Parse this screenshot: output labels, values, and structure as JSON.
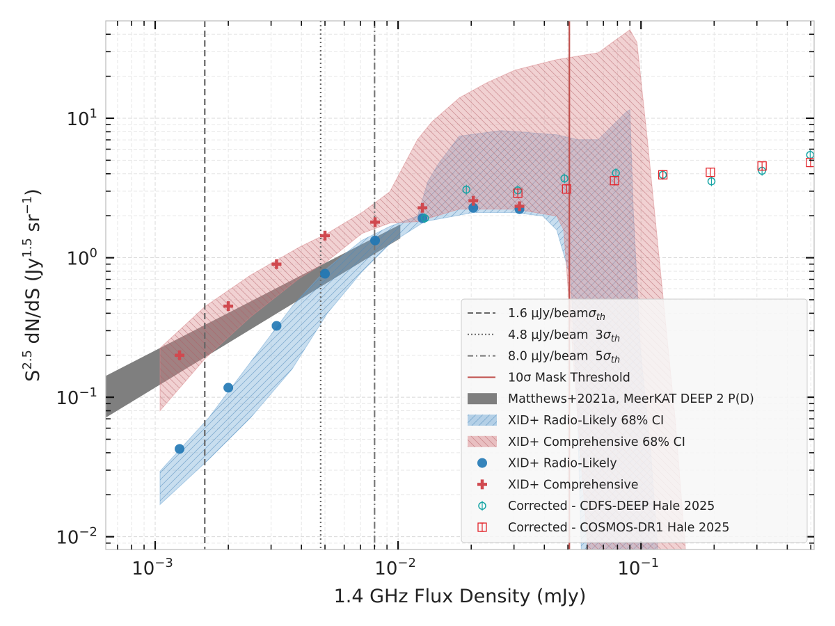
{
  "chart_data": {
    "type": "scatter",
    "xscale": "log",
    "yscale": "log",
    "xlim": [
      0.000626,
      0.516
    ],
    "ylim": [
      0.0081,
      49.9
    ],
    "xlabel": "1.4 GHz Flux Density (mJy)",
    "ylabel": {
      "s": "S",
      "s_exp": "2.5",
      "mid": " dN/dS (Jy",
      "jy_exp": "1.5",
      "sr": " sr",
      "sr_exp": "−1",
      "end": ")"
    },
    "grid": true,
    "legend_position": "lower-right",
    "x_ticks": [
      {
        "value": 0.001,
        "base": "10",
        "exp": "−3"
      },
      {
        "value": 0.01,
        "base": "10",
        "exp": "−2"
      },
      {
        "value": 0.1,
        "base": "10",
        "exp": "−1"
      }
    ],
    "y_ticks": [
      {
        "value": 0.01,
        "base": "10",
        "exp": "−2"
      },
      {
        "value": 0.1,
        "base": "10",
        "exp": "−1"
      },
      {
        "value": 1,
        "base": "10",
        "exp": "0"
      },
      {
        "value": 10,
        "base": "10",
        "exp": "1"
      }
    ],
    "vlines": [
      {
        "x": 0.0016,
        "style": "dashed",
        "color": "#666666",
        "label": "1.6 µJy/beam",
        "math_pre": "",
        "math": "σ",
        "math_sub": "th"
      },
      {
        "x": 0.0048,
        "style": "dotted",
        "color": "#666666",
        "label": "4.8 µJy/beam",
        "math_pre": "3",
        "math": "σ",
        "math_sub": "th"
      },
      {
        "x": 0.008,
        "style": "dashdot",
        "color": "#777777",
        "label": "8.0 µJy/beam",
        "math_pre": "5",
        "math": "σ",
        "math_sub": "th"
      },
      {
        "x": 0.0507,
        "style": "solid",
        "color": "#c0504d",
        "label": "10σ Mask Threshold",
        "math_pre": "",
        "math": "",
        "math_sub": ""
      }
    ],
    "bands": [
      {
        "name": "Matthews+2021a, MeerKAT DEEP 2 P(D)",
        "color": "#7f7f7f",
        "opacity": 1,
        "hatch": "none",
        "upper_log10": [
          [
            -3.203,
            -0.847
          ],
          [
            -1.991,
            0.239
          ]
        ],
        "lower_log10": [
          [
            -3.203,
            -1.146
          ],
          [
            -1.991,
            0.14
          ]
        ]
      },
      {
        "name": "XID+ Radio-Likely 68% CI",
        "color": "#6fa8d6",
        "opacity": 0.38,
        "hatch": "forward",
        "upper_log10": [
          [
            -2.98,
            -1.53
          ],
          [
            -2.779,
            -1.146
          ],
          [
            -2.607,
            -0.747
          ],
          [
            -2.436,
            -0.349
          ],
          [
            -2.292,
            -0.075
          ],
          [
            -2.149,
            0.125
          ],
          [
            -2.034,
            0.224
          ],
          [
            -1.92,
            0.299
          ],
          [
            -1.877,
            0.548
          ],
          [
            -1.834,
            0.673
          ],
          [
            -1.748,
            0.872
          ],
          [
            -1.576,
            0.912
          ],
          [
            -1.347,
            0.882
          ],
          [
            -1.261,
            0.847
          ],
          [
            -1.175,
            0.847
          ],
          [
            -1.132,
            0.922
          ],
          [
            -1.06,
            1.046
          ],
          [
            -1.046,
            1.061
          ],
          [
            -1.032,
            0.349
          ],
          [
            -1.003,
            -0.648
          ],
          [
            -0.96,
            -1.395
          ],
          [
            -0.931,
            -2.093
          ]
        ],
        "lower_log10": [
          [
            -2.98,
            -1.769
          ],
          [
            -2.779,
            -1.445
          ],
          [
            -2.607,
            -1.146
          ],
          [
            -2.436,
            -0.797
          ],
          [
            -2.292,
            -0.399
          ],
          [
            -2.149,
            -0.1
          ],
          [
            -2.034,
            0.1
          ],
          [
            -1.891,
            0.259
          ],
          [
            -1.691,
            0.324
          ],
          [
            -1.519,
            0.324
          ],
          [
            -1.404,
            0.299
          ],
          [
            -1.347,
            0.199
          ],
          [
            -1.289,
            -0.149
          ],
          [
            -1.261,
            -1.146
          ],
          [
            -1.246,
            -2.093
          ]
        ]
      },
      {
        "name": "XID+ Comprehensive 68% CI",
        "color": "#d9868a",
        "opacity": 0.38,
        "hatch": "back",
        "upper_log10": [
          [
            -2.98,
            -0.648
          ],
          [
            -2.794,
            -0.349
          ],
          [
            -2.607,
            -0.125
          ],
          [
            -2.407,
            0.075
          ],
          [
            -2.292,
            0.174
          ],
          [
            -2.149,
            0.324
          ],
          [
            -2.034,
            0.473
          ],
          [
            -1.92,
            0.847
          ],
          [
            -1.862,
            0.972
          ],
          [
            -1.748,
            1.146
          ],
          [
            -1.633,
            1.256
          ],
          [
            -1.519,
            1.345
          ],
          [
            -1.347,
            1.42
          ],
          [
            -1.175,
            1.47
          ],
          [
            -1.117,
            1.545
          ],
          [
            -1.046,
            1.634
          ],
          [
            -1.017,
            1.545
          ],
          [
            -0.974,
            0.847
          ],
          [
            -0.917,
            -0.149
          ],
          [
            -0.86,
            -1.146
          ],
          [
            -0.817,
            -2.093
          ]
        ],
        "lower_log10": [
          [
            -2.98,
            -1.096
          ],
          [
            -2.794,
            -0.722
          ],
          [
            -2.607,
            -0.424
          ],
          [
            -2.407,
            -0.149
          ],
          [
            -2.292,
            -0.025
          ],
          [
            -2.149,
            0.174
          ],
          [
            -2.034,
            0.249
          ],
          [
            -1.92,
            0.259
          ],
          [
            -1.748,
            0.349
          ],
          [
            -1.519,
            0.349
          ],
          [
            -1.347,
            0.299
          ],
          [
            -1.318,
            0.199
          ],
          [
            -1.261,
            -1.146
          ],
          [
            -1.218,
            -2.093
          ]
        ]
      }
    ],
    "series": [
      {
        "name": "XID+ Radio-Likely",
        "marker": "circle",
        "color": "#1f77b4",
        "x": [
          0.00126,
          0.002,
          0.00316,
          0.005,
          0.00804,
          0.0126,
          0.0204,
          0.0316
        ],
        "y": [
          0.0426,
          0.117,
          0.325,
          0.768,
          1.33,
          1.92,
          2.28,
          2.23
        ]
      },
      {
        "name": "XID+ Comprehensive",
        "marker": "plus",
        "color": "#d0494f",
        "x": [
          0.00126,
          0.002,
          0.00316,
          0.005,
          0.00804,
          0.0126,
          0.0204,
          0.0316
        ],
        "y": [
          0.2,
          0.45,
          0.9,
          1.44,
          1.8,
          2.28,
          2.56,
          2.34
        ]
      },
      {
        "name": "Corrected - CDFS-DEEP Hale 2025",
        "marker": "open-circle",
        "color": "#17a5a5",
        "x": [
          0.0129,
          0.0191,
          0.0311,
          0.0484,
          0.0788,
          0.123,
          0.195,
          0.315,
          0.497
        ],
        "y": [
          1.92,
          3.08,
          3.04,
          3.7,
          4.05,
          3.93,
          3.53,
          4.2,
          5.46
        ]
      },
      {
        "name": "Corrected - COSMOS-DR1 Hale 2025",
        "marker": "open-square",
        "color": "#e3242b",
        "x": [
          0.0311,
          0.0494,
          0.0778,
          0.123,
          0.193,
          0.315,
          0.499
        ],
        "y": [
          2.9,
          3.11,
          3.57,
          3.93,
          4.1,
          4.55,
          4.82
        ]
      }
    ]
  }
}
